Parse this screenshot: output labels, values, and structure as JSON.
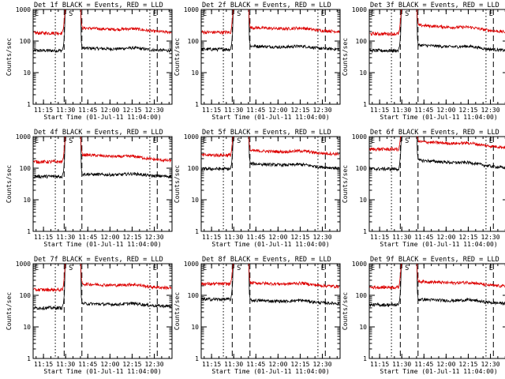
{
  "colors": {
    "events": "#000000",
    "lld": "#dd0000",
    "background": "#ffffff",
    "axis": "#000000"
  },
  "ylabel": "Counts/sec",
  "xlabel": "Start Time (01-Jul-11 11:04:00)",
  "x_ticks": [
    "11:15",
    "11:30",
    "11:45",
    "12:00",
    "12:15",
    "12:30"
  ],
  "y_ticks": [
    "1",
    "10",
    "100",
    "1000"
  ],
  "markers": [
    "E",
    "S",
    "E"
  ],
  "chart_data": [
    {
      "type": "line",
      "title": "Det 1f BLACK = Events, RED = LLD",
      "xlim_min": [
        4,
        98
      ],
      "ylim": [
        1,
        1000
      ],
      "yscale": "log",
      "dotted_min": [
        19,
        83
      ],
      "dashed_min": [
        25,
        37,
        88
      ],
      "gap_min": [
        26,
        36
      ],
      "series": [
        {
          "key": "events",
          "pre": 50,
          "post": 60,
          "post_end": 50
        },
        {
          "key": "lld",
          "pre": 180,
          "post": 260,
          "post_end": 190
        }
      ]
    },
    {
      "type": "line",
      "title": "Det 2f BLACK = Events, RED = LLD",
      "xlim_min": [
        4,
        98
      ],
      "ylim": [
        1,
        1000
      ],
      "yscale": "log",
      "dotted_min": [
        19,
        83
      ],
      "dashed_min": [
        25,
        37,
        88
      ],
      "gap_min": [
        26,
        36
      ],
      "series": [
        {
          "key": "events",
          "pre": 55,
          "post": 70,
          "post_end": 55
        },
        {
          "key": "lld",
          "pre": 190,
          "post": 270,
          "post_end": 200
        }
      ]
    },
    {
      "type": "line",
      "title": "Det 3f BLACK = Events, RED = LLD",
      "xlim_min": [
        4,
        98
      ],
      "ylim": [
        1,
        1000
      ],
      "yscale": "log",
      "dotted_min": [
        19,
        83
      ],
      "dashed_min": [
        25,
        37,
        88
      ],
      "gap_min": [
        26,
        36
      ],
      "series": [
        {
          "key": "events",
          "pre": 50,
          "post": 75,
          "post_end": 50
        },
        {
          "key": "lld",
          "pre": 170,
          "post": 320,
          "post_end": 190
        }
      ]
    },
    {
      "type": "line",
      "title": "Det 4f BLACK = Events, RED = LLD",
      "xlim_min": [
        4,
        98
      ],
      "ylim": [
        1,
        1000
      ],
      "yscale": "log",
      "dotted_min": [
        19,
        83
      ],
      "dashed_min": [
        25,
        37,
        88
      ],
      "gap_min": [
        26,
        36
      ],
      "series": [
        {
          "key": "events",
          "pre": 55,
          "post": 65,
          "post_end": 55
        },
        {
          "key": "lld",
          "pre": 160,
          "post": 270,
          "post_end": 170
        }
      ]
    },
    {
      "type": "line",
      "title": "Det 5f BLACK = Events, RED = LLD",
      "xlim_min": [
        4,
        98
      ],
      "ylim": [
        1,
        1000
      ],
      "yscale": "log",
      "dotted_min": [
        19,
        83
      ],
      "dashed_min": [
        25,
        37,
        88
      ],
      "gap_min": [
        26,
        36
      ],
      "series": [
        {
          "key": "events",
          "pre": 95,
          "post": 140,
          "post_end": 100
        },
        {
          "key": "lld",
          "pre": 260,
          "post": 360,
          "post_end": 280
        }
      ]
    },
    {
      "type": "line",
      "title": "Det 6f BLACK = Events, RED = LLD",
      "xlim_min": [
        4,
        98
      ],
      "ylim": [
        1,
        1000
      ],
      "yscale": "log",
      "dotted_min": [
        19,
        83
      ],
      "dashed_min": [
        25,
        37,
        88
      ],
      "gap_min": [
        26,
        36
      ],
      "series": [
        {
          "key": "events",
          "pre": 95,
          "post": 180,
          "post_end": 100
        },
        {
          "key": "lld",
          "pre": 400,
          "post": 700,
          "post_end": 450
        }
      ]
    },
    {
      "type": "line",
      "title": "Det 7f BLACK = Events, RED = LLD",
      "xlim_min": [
        4,
        98
      ],
      "ylim": [
        1,
        1000
      ],
      "yscale": "log",
      "dotted_min": [
        19,
        83
      ],
      "dashed_min": [
        25,
        37,
        88
      ],
      "gap_min": [
        26,
        36
      ],
      "series": [
        {
          "key": "events",
          "pre": 40,
          "post": 55,
          "post_end": 45
        },
        {
          "key": "lld",
          "pre": 150,
          "post": 230,
          "post_end": 170
        }
      ]
    },
    {
      "type": "line",
      "title": "Det 8f BLACK = Events, RED = LLD",
      "xlim_min": [
        4,
        98
      ],
      "ylim": [
        1,
        1000
      ],
      "yscale": "log",
      "dotted_min": [
        19,
        83
      ],
      "dashed_min": [
        25,
        37,
        88
      ],
      "gap_min": [
        26,
        36
      ],
      "series": [
        {
          "key": "events",
          "pre": 75,
          "post": 70,
          "post_end": 55
        },
        {
          "key": "lld",
          "pre": 230,
          "post": 250,
          "post_end": 190
        }
      ]
    },
    {
      "type": "line",
      "title": "Det 9f BLACK = Events, RED = LLD",
      "xlim_min": [
        4,
        98
      ],
      "ylim": [
        1,
        1000
      ],
      "yscale": "log",
      "dotted_min": [
        19,
        83
      ],
      "dashed_min": [
        25,
        37,
        88
      ],
      "gap_min": [
        26,
        36
      ],
      "series": [
        {
          "key": "events",
          "pre": 50,
          "post": 75,
          "post_end": 55
        },
        {
          "key": "lld",
          "pre": 180,
          "post": 280,
          "post_end": 190
        }
      ]
    }
  ]
}
